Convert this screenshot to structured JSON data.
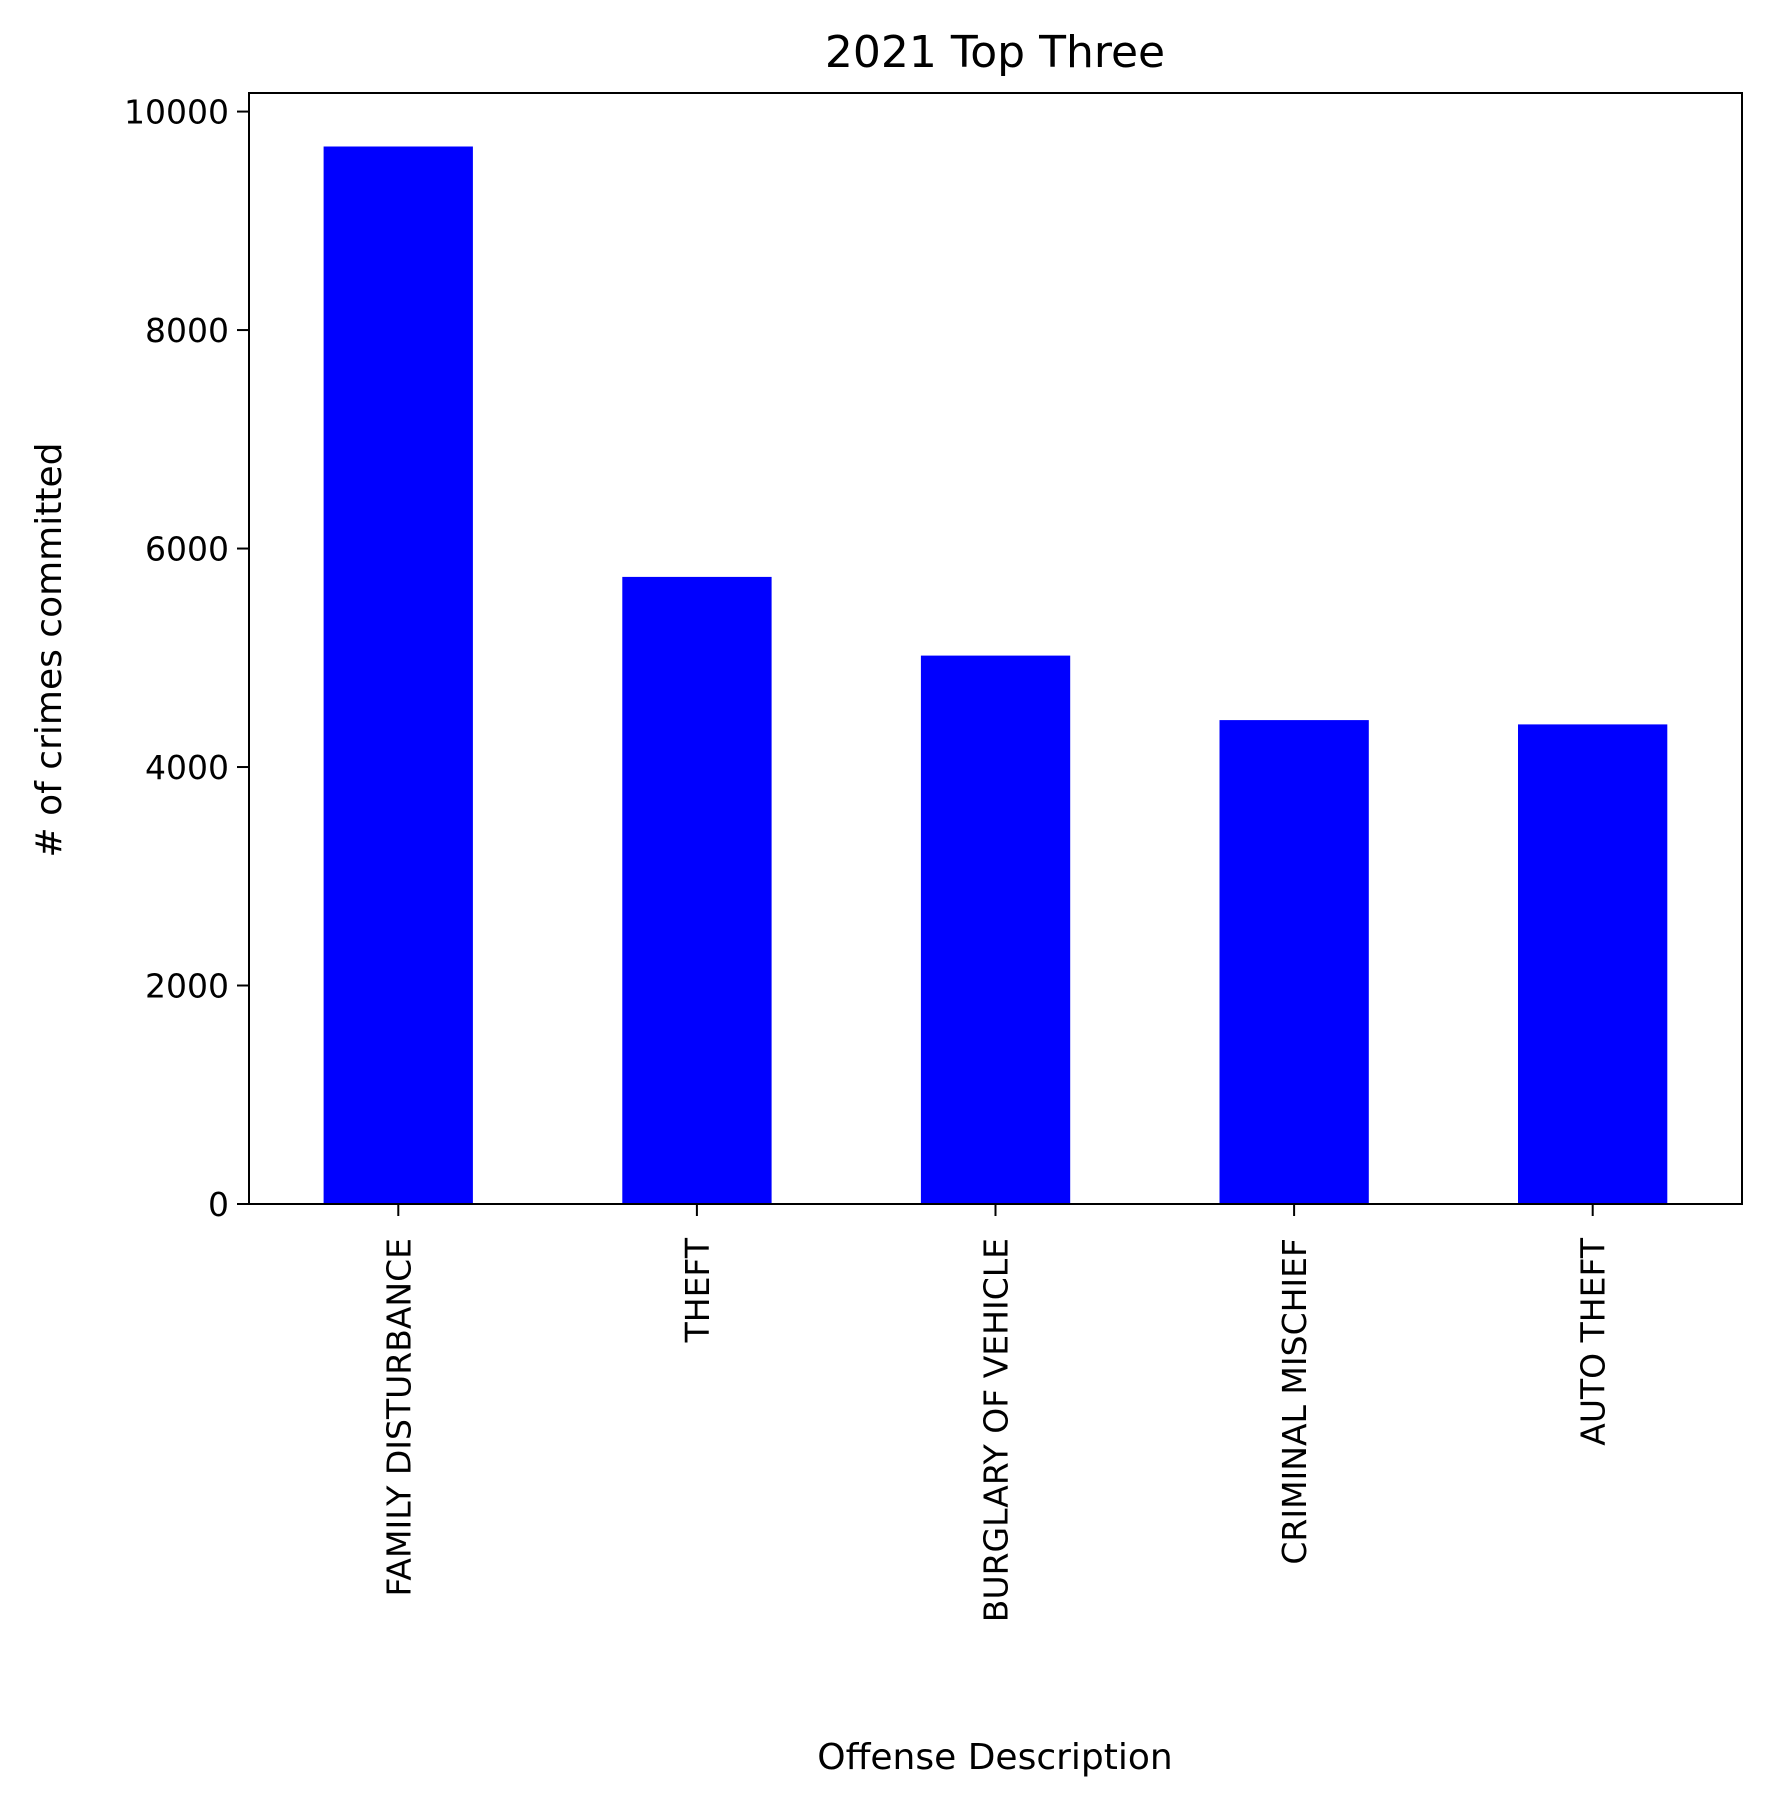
{
  "chart_data": {
    "type": "bar",
    "title": "2021 Top Three",
    "xlabel": "Offense Description",
    "ylabel": "# of crimes committed",
    "categories": [
      "FAMILY DISTURBANCE",
      "THEFT",
      "BURGLARY OF VEHICLE",
      "CRIMINAL MISCHIEF",
      "AUTO THEFT"
    ],
    "values": [
      9680,
      5740,
      5020,
      4430,
      4390
    ],
    "ylim": [
      0,
      10170
    ],
    "yticks": [
      0,
      2000,
      4000,
      6000,
      8000,
      10000
    ],
    "ytick_labels": [
      "0",
      "2000",
      "4000",
      "6000",
      "8000",
      "10000"
    ],
    "bar_color": "#0000ff",
    "legend": "none",
    "grid": false
  }
}
